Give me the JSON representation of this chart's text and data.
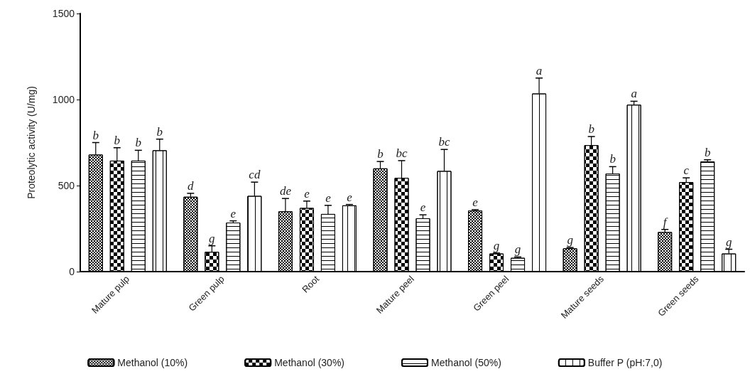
{
  "chart_data": {
    "type": "bar",
    "ylabel": "Proteolytic activity (U/mg)",
    "categories": [
      "Mature pulp",
      "Green pulp",
      "Root",
      "Mature peel",
      "Green peel",
      "Mature seeds",
      "Green seeds"
    ],
    "series": [
      {
        "name": "Methanol (10%)",
        "color": "#000000",
        "values": [
          680,
          435,
          350,
          600,
          355,
          135,
          230
        ],
        "errors": [
          [
            680,
            750
          ],
          [
            435,
            455
          ],
          [
            350,
            425
          ],
          [
            600,
            640
          ],
          [
            355,
            360
          ],
          [
            135,
            140
          ],
          [
            230,
            245
          ]
        ],
        "value_labels": [
          "b",
          "d",
          "de",
          "b",
          "e",
          "g",
          "f"
        ]
      },
      {
        "name": "Methanol (30%)",
        "color": "#000000",
        "values": [
          645,
          115,
          370,
          545,
          105,
          735,
          520
        ],
        "errors": [
          [
            645,
            720
          ],
          [
            115,
            150
          ],
          [
            370,
            410
          ],
          [
            545,
            645
          ],
          [
            105,
            108
          ],
          [
            735,
            785
          ],
          [
            520,
            545
          ]
        ],
        "value_labels": [
          "b",
          "g",
          "e",
          "bc",
          "g",
          "b",
          "c"
        ]
      },
      {
        "name": "Methanol (50%)",
        "color": "#000000",
        "values": [
          645,
          285,
          335,
          310,
          80,
          570,
          640
        ],
        "errors": [
          [
            645,
            705
          ],
          [
            285,
            295
          ],
          [
            335,
            385
          ],
          [
            310,
            330
          ],
          [
            80,
            85
          ],
          [
            570,
            610
          ],
          [
            640,
            650
          ]
        ],
        "value_labels": [
          "b",
          "e",
          "e",
          "e",
          "g",
          "b",
          "b"
        ]
      },
      {
        "name": "Buffer P (pH:7,0)",
        "color": "#000000",
        "values": [
          705,
          440,
          385,
          585,
          1035,
          970,
          105
        ],
        "errors": [
          [
            705,
            770
          ],
          [
            440,
            520
          ],
          [
            385,
            390
          ],
          [
            585,
            710
          ],
          [
            1035,
            1125
          ],
          [
            970,
            990
          ],
          [
            105,
            130
          ]
        ],
        "value_labels": [
          "b",
          "cd",
          "e",
          "bc",
          "a",
          "a",
          "g"
        ]
      }
    ],
    "ylim": [
      0,
      1500
    ],
    "yticks": [
      0,
      500,
      1000,
      1500
    ],
    "grid": false,
    "legend": "bottom"
  }
}
